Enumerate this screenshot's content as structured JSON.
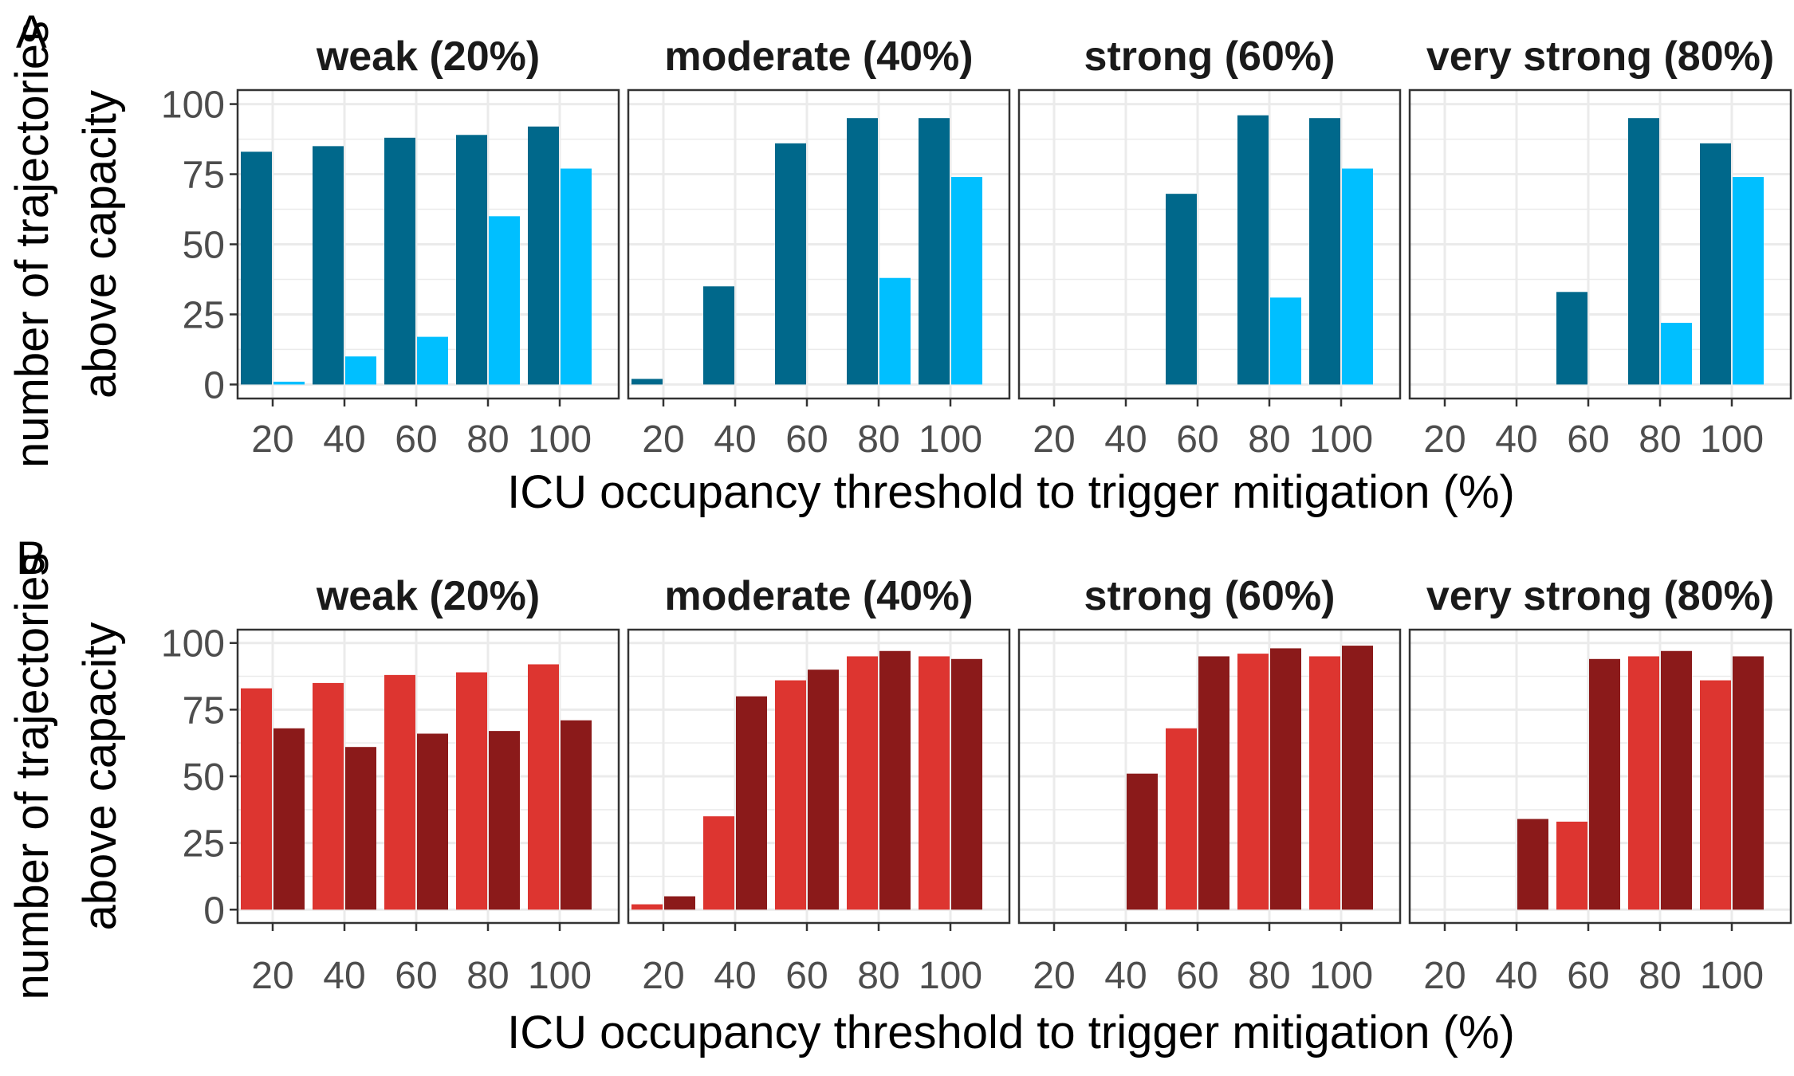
{
  "panel_labels": [
    "A",
    "B"
  ],
  "facet_titles": [
    "weak (20%)",
    "moderate (40%)",
    "strong (60%)",
    "very strong (80%)"
  ],
  "xlabel": "ICU occupancy threshold to trigger mitigation (%)",
  "ylabel_line1": "number of trajectories",
  "ylabel_line2": "above capacity",
  "x_ticks": [
    "20",
    "40",
    "60",
    "80",
    "100"
  ],
  "y_ticks": [
    "0",
    "25",
    "50",
    "75",
    "100"
  ],
  "colors": {
    "a_series1": "#00688b",
    "a_series2": "#00bfff",
    "b_series1": "#dd3530",
    "b_series2": "#8b1a1a",
    "grid": "#ebebeb",
    "frame": "#333333"
  },
  "chart_data": [
    {
      "panel": "A",
      "type": "bar",
      "categories": [
        "20",
        "40",
        "60",
        "80",
        "100"
      ],
      "ylim": [
        0,
        100
      ],
      "grid": true,
      "facets": [
        {
          "title": "weak (20%)",
          "series": [
            {
              "values": [
                83,
                85,
                88,
                89,
                92
              ]
            },
            {
              "values": [
                1,
                10,
                17,
                60,
                77
              ]
            }
          ]
        },
        {
          "title": "moderate (40%)",
          "series": [
            {
              "values": [
                2,
                35,
                86,
                95,
                95
              ]
            },
            {
              "values": [
                0,
                0,
                0,
                38,
                74
              ]
            }
          ]
        },
        {
          "title": "strong (60%)",
          "series": [
            {
              "values": [
                0,
                0,
                68,
                96,
                95
              ]
            },
            {
              "values": [
                0,
                0,
                0,
                31,
                77
              ]
            }
          ]
        },
        {
          "title": "very strong (80%)",
          "series": [
            {
              "values": [
                0,
                0,
                33,
                95,
                86
              ]
            },
            {
              "values": [
                0,
                0,
                0,
                22,
                74
              ]
            }
          ]
        }
      ]
    },
    {
      "panel": "B",
      "type": "bar",
      "categories": [
        "20",
        "40",
        "60",
        "80",
        "100"
      ],
      "ylim": [
        0,
        100
      ],
      "grid": true,
      "facets": [
        {
          "title": "weak (20%)",
          "series": [
            {
              "values": [
                83,
                85,
                88,
                89,
                92
              ]
            },
            {
              "values": [
                68,
                61,
                66,
                67,
                71
              ]
            }
          ]
        },
        {
          "title": "moderate (40%)",
          "series": [
            {
              "values": [
                2,
                35,
                86,
                95,
                95
              ]
            },
            {
              "values": [
                5,
                80,
                90,
                97,
                94
              ]
            }
          ]
        },
        {
          "title": "strong (60%)",
          "series": [
            {
              "values": [
                0,
                0,
                68,
                96,
                95
              ]
            },
            {
              "values": [
                0,
                51,
                95,
                98,
                99
              ]
            }
          ]
        },
        {
          "title": "very strong (80%)",
          "series": [
            {
              "values": [
                0,
                0,
                33,
                95,
                86
              ]
            },
            {
              "values": [
                0,
                34,
                94,
                97,
                95
              ]
            }
          ]
        }
      ]
    }
  ]
}
